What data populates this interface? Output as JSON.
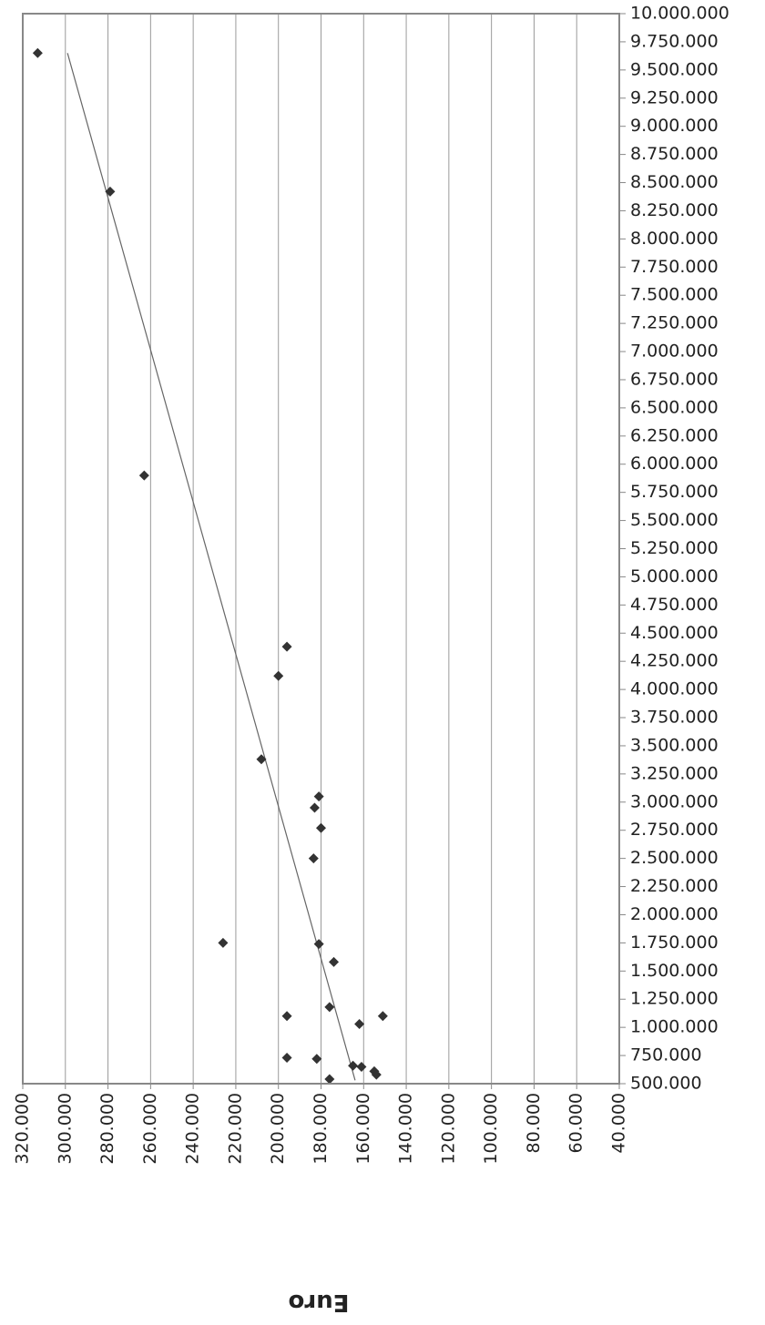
{
  "chart_data": {
    "type": "scatter",
    "title": "",
    "xlabel": "Euro",
    "ylabel": "",
    "x_axis_reversed": true,
    "xlim": [
      40000,
      320000
    ],
    "ylim": [
      500000,
      10000000
    ],
    "x_ticks": [
      "320.000",
      "300.000",
      "280.000",
      "260.000",
      "240.000",
      "220.000",
      "200.000",
      "180.000",
      "160.000",
      "140.000",
      "120.000",
      "100.000",
      "80.000",
      "60.000",
      "40.000"
    ],
    "y_ticks": [
      "10.000.000",
      "9.750.000",
      "9.500.000",
      "9.250.000",
      "9.000.000",
      "8.750.000",
      "8.500.000",
      "8.250.000",
      "8.000.000",
      "7.750.000",
      "7.500.000",
      "7.250.000",
      "7.000.000",
      "6.750.000",
      "6.500.000",
      "6.250.000",
      "6.000.000",
      "5.750.000",
      "5.500.000",
      "5.250.000",
      "5.000.000",
      "4.750.000",
      "4.500.000",
      "4.250.000",
      "4.000.000",
      "3.750.000",
      "3.500.000",
      "3.250.000",
      "3.000.000",
      "2.750.000",
      "2.500.000",
      "2.250.000",
      "2.000.000",
      "1.750.000",
      "1.500.000",
      "1.250.000",
      "1.000.000",
      "750.000",
      "500.000"
    ],
    "grid": "vertical",
    "legend": "none",
    "marker_color": "#333333",
    "trendline_color": "#666666",
    "points": [
      {
        "x": 313000,
        "y": 9650000
      },
      {
        "x": 279000,
        "y": 8420000
      },
      {
        "x": 263000,
        "y": 5900000
      },
      {
        "x": 196000,
        "y": 4380000
      },
      {
        "x": 200000,
        "y": 4120000
      },
      {
        "x": 208000,
        "y": 3380000
      },
      {
        "x": 181000,
        "y": 3050000
      },
      {
        "x": 183000,
        "y": 2950000
      },
      {
        "x": 180000,
        "y": 2770000
      },
      {
        "x": 183500,
        "y": 2500000
      },
      {
        "x": 226000,
        "y": 1750000
      },
      {
        "x": 181000,
        "y": 1740000
      },
      {
        "x": 174000,
        "y": 1580000
      },
      {
        "x": 196000,
        "y": 1100000
      },
      {
        "x": 176000,
        "y": 1180000
      },
      {
        "x": 151000,
        "y": 1100000
      },
      {
        "x": 162000,
        "y": 1030000
      },
      {
        "x": 196000,
        "y": 730000
      },
      {
        "x": 182000,
        "y": 720000
      },
      {
        "x": 165000,
        "y": 660000
      },
      {
        "x": 161000,
        "y": 650000
      },
      {
        "x": 155000,
        "y": 610000
      },
      {
        "x": 154000,
        "y": 580000
      },
      {
        "x": 176000,
        "y": 540000
      }
    ],
    "trendline": [
      {
        "x": 299000,
        "y": 9650000
      },
      {
        "x": 164000,
        "y": 530000
      }
    ]
  }
}
